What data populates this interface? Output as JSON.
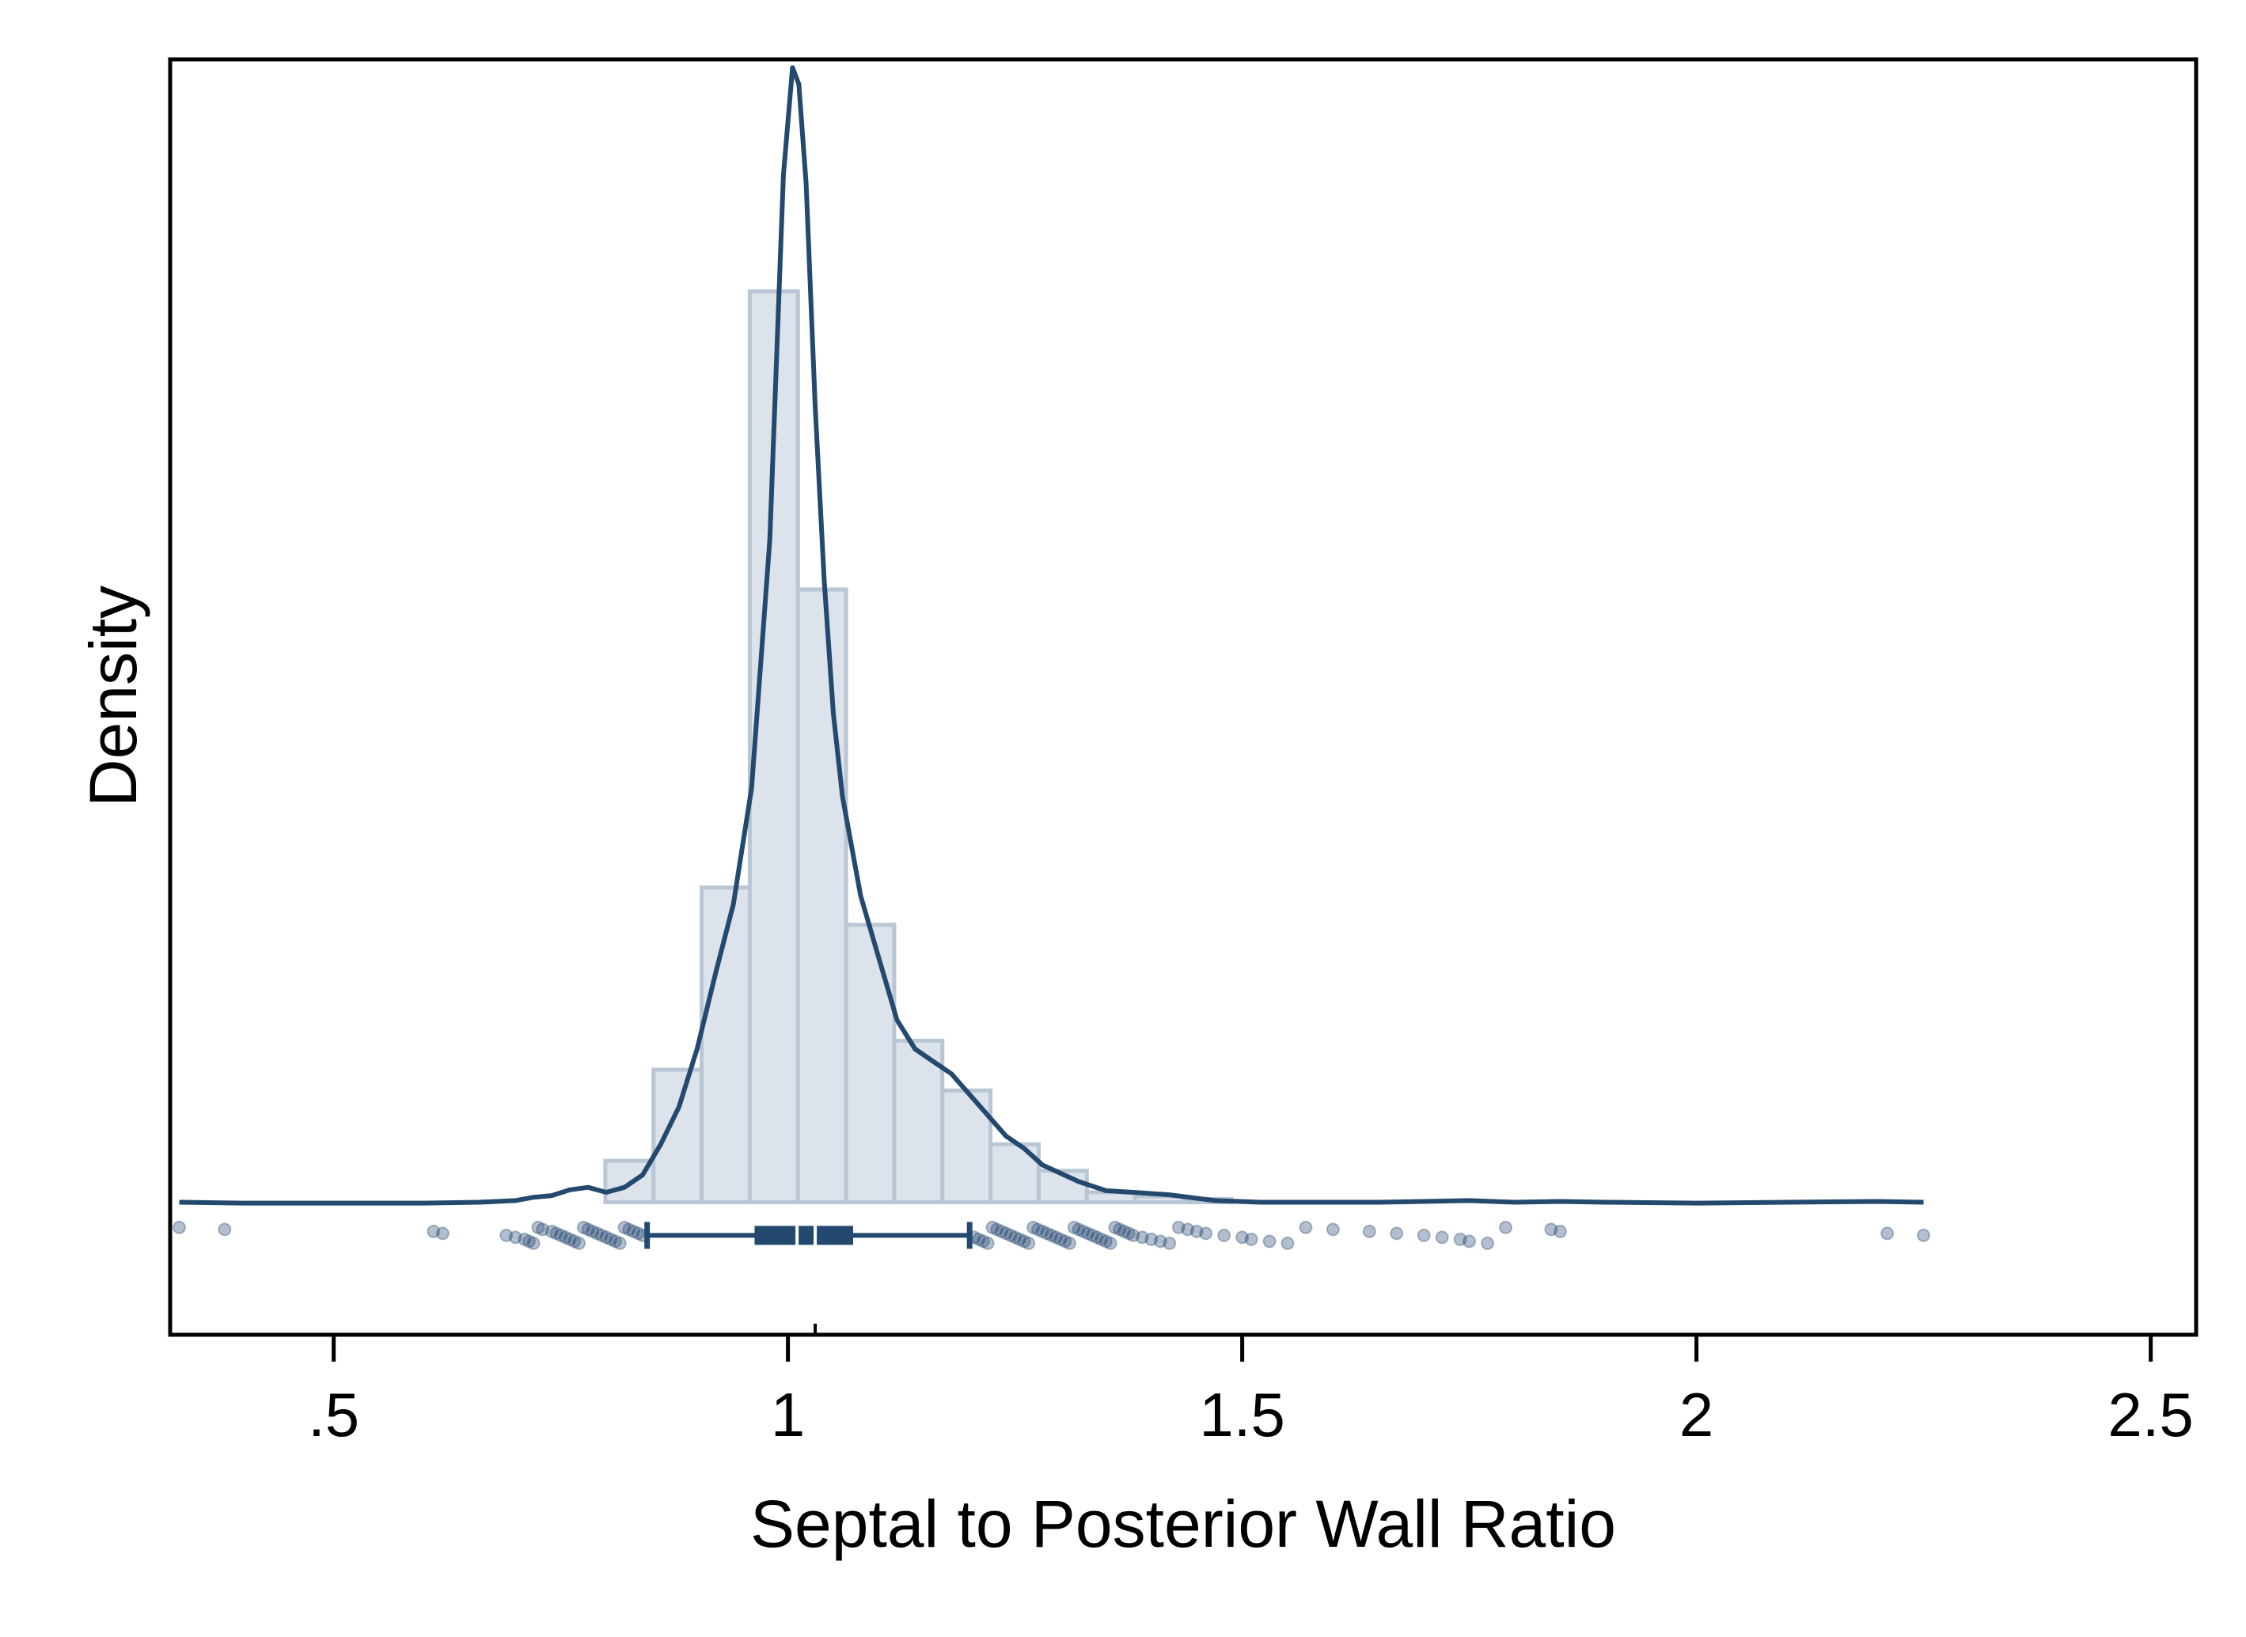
{
  "chart_data": {
    "type": "histogram-density-boxplot",
    "xlabel": "Septal to Posterior Wall Ratio",
    "ylabel": "Density",
    "xlim": [
      0.32,
      2.55
    ],
    "ylim": [
      -1.6,
      13.8
    ],
    "xticks": [
      0.5,
      1,
      1.5,
      2,
      2.5
    ],
    "xtick_labels": [
      ".5",
      "1",
      "1.5",
      "2",
      "2.5"
    ],
    "y_ticks_shown": false,
    "grid": false,
    "legend": "none",
    "colors": {
      "bar_fill": "#dce3ea",
      "bar_edge": "#b9c6d3",
      "line": "#24496f",
      "point": "#24496f",
      "axis": "#000000"
    },
    "histogram": {
      "bin_width": 0.053,
      "bins": [
        {
          "x0": 0.799,
          "x1": 0.852,
          "density": 0.5
        },
        {
          "x0": 0.852,
          "x1": 0.905,
          "density": 1.6
        },
        {
          "x0": 0.905,
          "x1": 0.958,
          "density": 3.8
        },
        {
          "x0": 0.958,
          "x1": 1.011,
          "density": 11.0
        },
        {
          "x0": 1.011,
          "x1": 1.064,
          "density": 7.4
        },
        {
          "x0": 1.064,
          "x1": 1.117,
          "density": 3.35
        },
        {
          "x0": 1.117,
          "x1": 1.17,
          "density": 1.95
        },
        {
          "x0": 1.17,
          "x1": 1.223,
          "density": 1.35
        },
        {
          "x0": 1.223,
          "x1": 1.276,
          "density": 0.7
        },
        {
          "x0": 1.276,
          "x1": 1.329,
          "density": 0.38
        },
        {
          "x0": 1.329,
          "x1": 1.382,
          "density": 0.12
        },
        {
          "x0": 1.382,
          "x1": 1.435,
          "density": 0.07
        },
        {
          "x0": 1.435,
          "x1": 1.488,
          "density": 0.04
        }
      ]
    },
    "density_curve": [
      [
        0.33,
        0.0
      ],
      [
        0.4,
        -0.01
      ],
      [
        0.5,
        -0.01
      ],
      [
        0.6,
        -0.01
      ],
      [
        0.66,
        0.0
      ],
      [
        0.7,
        0.02
      ],
      [
        0.72,
        0.06
      ],
      [
        0.74,
        0.08
      ],
      [
        0.76,
        0.15
      ],
      [
        0.78,
        0.18
      ],
      [
        0.8,
        0.12
      ],
      [
        0.82,
        0.18
      ],
      [
        0.84,
        0.33
      ],
      [
        0.86,
        0.7
      ],
      [
        0.88,
        1.15
      ],
      [
        0.9,
        1.85
      ],
      [
        0.92,
        2.75
      ],
      [
        0.94,
        3.6
      ],
      [
        0.96,
        5.0
      ],
      [
        0.98,
        8.0
      ],
      [
        0.995,
        12.4
      ],
      [
        1.005,
        13.7
      ],
      [
        1.012,
        13.5
      ],
      [
        1.02,
        12.3
      ],
      [
        1.03,
        9.6
      ],
      [
        1.04,
        7.5
      ],
      [
        1.05,
        5.9
      ],
      [
        1.06,
        4.9
      ],
      [
        1.08,
        3.7
      ],
      [
        1.1,
        2.95
      ],
      [
        1.12,
        2.2
      ],
      [
        1.14,
        1.85
      ],
      [
        1.16,
        1.7
      ],
      [
        1.18,
        1.55
      ],
      [
        1.2,
        1.3
      ],
      [
        1.22,
        1.05
      ],
      [
        1.24,
        0.8
      ],
      [
        1.26,
        0.65
      ],
      [
        1.28,
        0.45
      ],
      [
        1.3,
        0.35
      ],
      [
        1.32,
        0.25
      ],
      [
        1.35,
        0.14
      ],
      [
        1.38,
        0.12
      ],
      [
        1.42,
        0.09
      ],
      [
        1.47,
        0.02
      ],
      [
        1.52,
        0.0
      ],
      [
        1.58,
        0.0
      ],
      [
        1.65,
        0.0
      ],
      [
        1.7,
        0.01
      ],
      [
        1.75,
        0.02
      ],
      [
        1.8,
        0.0
      ],
      [
        1.85,
        0.01
      ],
      [
        1.9,
        0.0
      ],
      [
        2.0,
        -0.01
      ],
      [
        2.1,
        0.0
      ],
      [
        2.2,
        0.01
      ],
      [
        2.25,
        0.0
      ]
    ],
    "boxplot": {
      "whisker_low": 0.845,
      "q1": 0.965,
      "median": 1.01,
      "mean": 1.03,
      "q3": 1.07,
      "whisker_high": 1.2
    },
    "outliers": [
      0.33,
      0.38,
      0.61,
      0.62,
      0.69,
      0.7,
      0.71,
      0.715,
      0.72,
      0.725,
      0.73,
      0.74,
      0.745,
      0.75,
      0.755,
      0.76,
      0.765,
      0.77,
      0.775,
      0.78,
      0.785,
      0.79,
      0.795,
      0.8,
      0.805,
      0.81,
      0.815,
      0.82,
      0.825,
      0.83,
      0.835,
      0.84,
      1.205,
      1.21,
      1.215,
      1.22,
      1.225,
      1.23,
      1.235,
      1.24,
      1.245,
      1.25,
      1.255,
      1.26,
      1.265,
      1.27,
      1.275,
      1.28,
      1.285,
      1.29,
      1.295,
      1.3,
      1.305,
      1.31,
      1.315,
      1.32,
      1.325,
      1.33,
      1.335,
      1.34,
      1.345,
      1.35,
      1.355,
      1.36,
      1.365,
      1.37,
      1.375,
      1.38,
      1.39,
      1.4,
      1.41,
      1.42,
      1.43,
      1.44,
      1.45,
      1.46,
      1.48,
      1.5,
      1.51,
      1.53,
      1.55,
      1.57,
      1.6,
      1.64,
      1.67,
      1.7,
      1.72,
      1.74,
      1.75,
      1.77,
      1.79,
      1.84,
      1.85,
      2.21,
      2.25
    ]
  }
}
